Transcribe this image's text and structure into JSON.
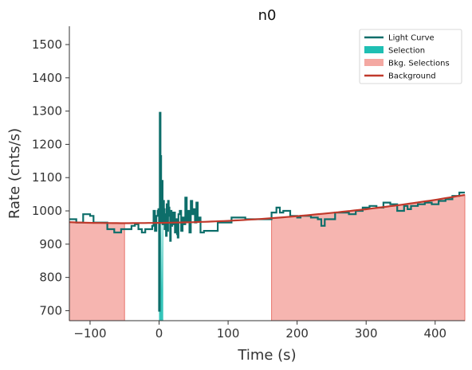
{
  "chart_data": {
    "type": "line",
    "title": "n0",
    "xlabel": "Time (s)",
    "ylabel": "Rate (cnts/s)",
    "xlim": [
      -130,
      443
    ],
    "ylim": [
      670,
      1555
    ],
    "xticks": [
      -100,
      0,
      100,
      200,
      300,
      400
    ],
    "yticks": [
      700,
      800,
      900,
      1000,
      1100,
      1200,
      1300,
      1400,
      1500
    ],
    "grid": false,
    "legend_position": "top-right",
    "colors": {
      "light_curve": "#0d6e6a",
      "selection": "#1fbfb3",
      "bkg_selection_fill": "#f4a8a2",
      "bkg_selection_edge": "#e8756c",
      "background": "#c0392b",
      "axis": "#333333"
    },
    "legend": [
      {
        "label": "Light Curve",
        "kind": "line",
        "color": "#0d6e6a"
      },
      {
        "label": "Selection",
        "kind": "patch",
        "color": "#1fbfb3"
      },
      {
        "label": "Bkg. Selections",
        "kind": "patch",
        "color": "#f4a8a2"
      },
      {
        "label": "Background",
        "kind": "line",
        "color": "#c0392b"
      }
    ],
    "background_model": {
      "x": [
        -130,
        -100,
        -50,
        0,
        50,
        100,
        150,
        200,
        250,
        300,
        350,
        400,
        443
      ],
      "y": [
        966,
        964,
        963,
        964,
        966,
        970,
        976,
        984,
        994,
        1005,
        1018,
        1033,
        1048
      ]
    },
    "bkg_selections": [
      {
        "x_start": -130,
        "x_end": -50
      },
      {
        "x_start": 163,
        "x_end": 443
      }
    ],
    "selection": {
      "x": [
        0,
        1,
        2,
        3,
        4,
        5,
        6
      ],
      "y": [
        705,
        1240,
        880,
        1010,
        760,
        995,
        930
      ]
    },
    "light_curve": {
      "x": [
        -130,
        -120,
        -115,
        -110,
        -100,
        -95,
        -85,
        -75,
        -65,
        -60,
        -55,
        -50,
        -45,
        -40,
        -35,
        -30,
        -25,
        -20,
        -15,
        -10,
        -8,
        -6,
        -4,
        -2,
        -1,
        0,
        1,
        2,
        3,
        4,
        5,
        6,
        7,
        8,
        9,
        10,
        11,
        12,
        13,
        14,
        15,
        16,
        17,
        18,
        19,
        20,
        21,
        22,
        23,
        24,
        25,
        26,
        27,
        28,
        30,
        32,
        34,
        36,
        38,
        40,
        42,
        44,
        46,
        48,
        50,
        52,
        54,
        56,
        58,
        60,
        65,
        70,
        80,
        85,
        95,
        105,
        115,
        125,
        135,
        145,
        155,
        163,
        165,
        170,
        175,
        180,
        190,
        200,
        205,
        210,
        215,
        220,
        225,
        230,
        235,
        240,
        245,
        255,
        265,
        275,
        285,
        295,
        305,
        315,
        325,
        335,
        345,
        355,
        360,
        365,
        375,
        385,
        395,
        405,
        415,
        425,
        435
      ],
      "y": [
        975,
        965,
        965,
        990,
        985,
        965,
        965,
        945,
        935,
        935,
        945,
        945,
        945,
        955,
        960,
        945,
        935,
        945,
        945,
        955,
        1000,
        940,
        985,
        1000,
        1005,
        700,
        1295,
        1165,
        965,
        1090,
        960,
        1030,
        1005,
        945,
        990,
        925,
        1020,
        940,
        1030,
        1010,
        985,
        910,
        1000,
        955,
        995,
        990,
        960,
        995,
        935,
        960,
        975,
        930,
        920,
        990,
        1000,
        940,
        980,
        960,
        1040,
        970,
        1000,
        935,
        1030,
        990,
        1005,
        965,
        1025,
        970,
        980,
        935,
        940,
        940,
        940,
        965,
        965,
        980,
        980,
        975,
        975,
        975,
        975,
        995,
        995,
        1010,
        995,
        1000,
        985,
        980,
        985,
        985,
        985,
        980,
        980,
        975,
        955,
        975,
        975,
        995,
        995,
        990,
        1000,
        1010,
        1015,
        1010,
        1025,
        1020,
        1000,
        1015,
        1005,
        1015,
        1020,
        1025,
        1020,
        1030,
        1035,
        1045,
        1055
      ]
    }
  }
}
